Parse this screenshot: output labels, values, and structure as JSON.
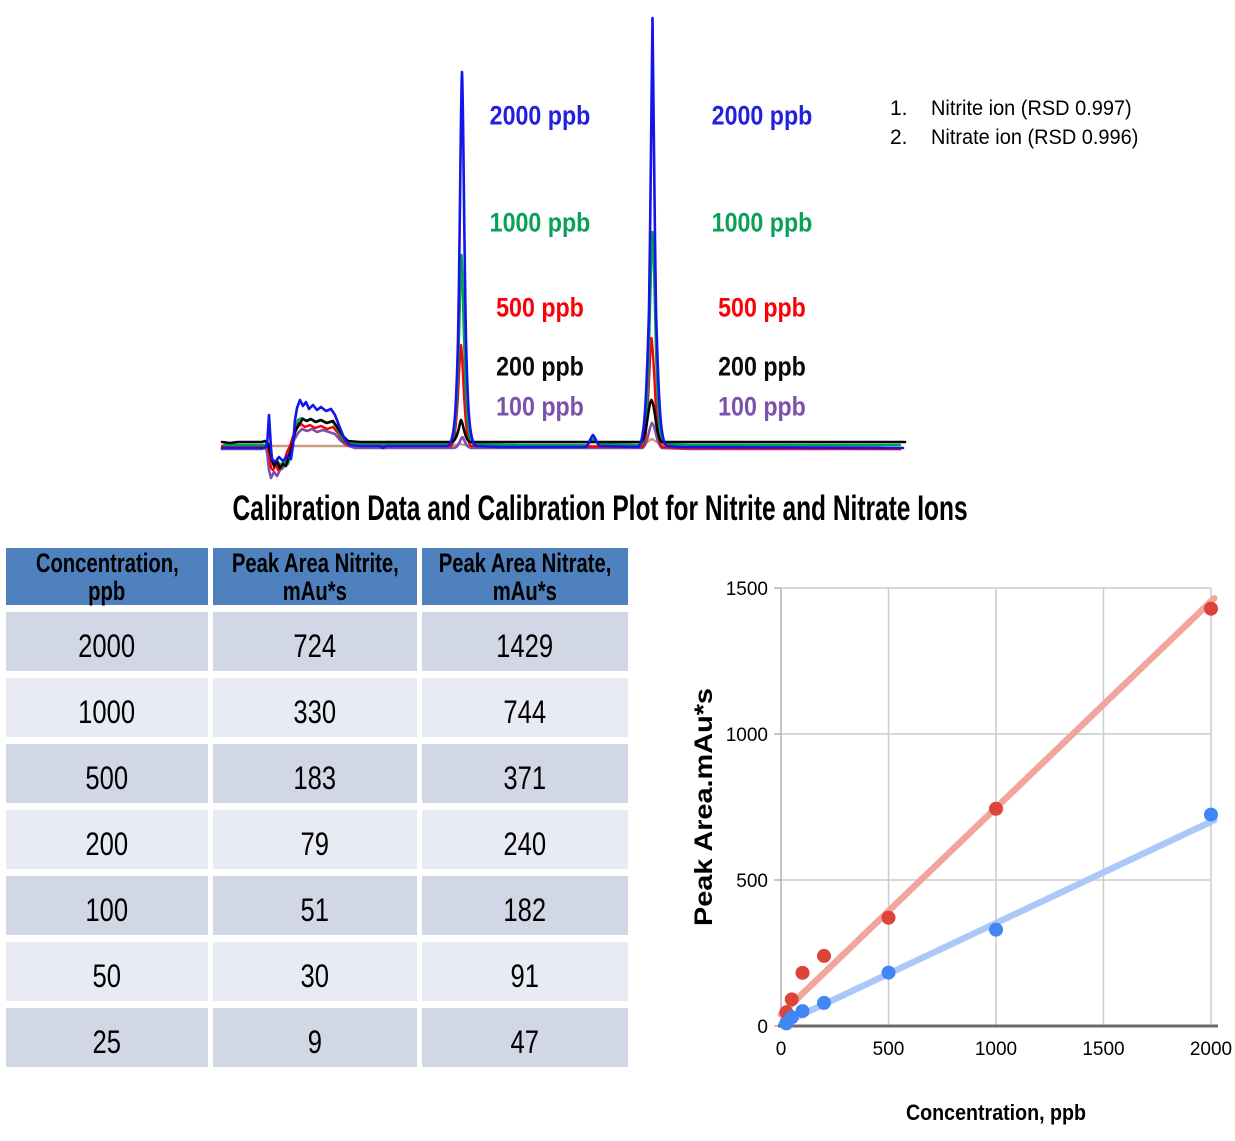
{
  "chromatogram": {
    "concentration_labels": [
      {
        "text": "2000 ppb",
        "color": "#2121DE"
      },
      {
        "text": "1000 ppb",
        "color": "#0AA157"
      },
      {
        "text": "500 ppb",
        "color": "#FB0007"
      },
      {
        "text": "200 ppb",
        "color": "#0A0A0A"
      },
      {
        "text": "100 ppb",
        "color": "#7B51A9"
      }
    ],
    "legend": {
      "items": [
        {
          "num": "1.",
          "label": "Nitrite ion (RSD 0.997)"
        },
        {
          "num": "2.",
          "label": "Nitrate ion (RSD 0.996)"
        }
      ]
    },
    "trace_colors": {
      "blue": "#1414EB",
      "green": "#00A14E",
      "red": "#FB0007",
      "black": "#050505",
      "purple": "#7B51A9",
      "tan": "#C99B7C"
    }
  },
  "section_title": "Calibration Data and Calibration Plot for Nitrite and Nitrate Ions",
  "table": {
    "headers": [
      {
        "line1": "Concentration,",
        "line2": "ppb"
      },
      {
        "line1": "Peak Area Nitrite,",
        "line2": "mAu*s"
      },
      {
        "line1": "Peak Area Nitrate,",
        "line2": "mAu*s"
      }
    ],
    "rows": [
      [
        "2000",
        "724",
        "1429"
      ],
      [
        "1000",
        "330",
        "744"
      ],
      [
        "500",
        "183",
        "371"
      ],
      [
        "200",
        "79",
        "240"
      ],
      [
        "100",
        "51",
        "182"
      ],
      [
        "50",
        "30",
        "91"
      ],
      [
        "25",
        "9",
        "47"
      ]
    ],
    "header_bg": "#4E81BD",
    "row_bg_dark": "#D2D7E6",
    "row_bg_light": "#E9EBF4"
  },
  "chart_data": [
    {
      "type": "line",
      "title": "Overlaid chromatograms of nitrite (peak 1) and nitrate (peak 2) standards",
      "series": [
        {
          "name": "2000 ppb",
          "color": "#1414EB"
        },
        {
          "name": "1000 ppb",
          "color": "#00A14E"
        },
        {
          "name": "500 ppb",
          "color": "#FB0007"
        },
        {
          "name": "200 ppb",
          "color": "#050505"
        },
        {
          "name": "100 ppb",
          "color": "#7B51A9"
        }
      ],
      "legend_entries": [
        "1. Nitrite ion (RSD 0.997)",
        "2. Nitrate ion (RSD 0.996)"
      ]
    },
    {
      "type": "scatter",
      "title": "",
      "xlabel": "Concentration, ppb",
      "ylabel": "Peak Area.mAu*s",
      "xlim": [
        0,
        2000
      ],
      "ylim": [
        0,
        1500
      ],
      "x_ticks": [
        0,
        500,
        1000,
        1500,
        2000
      ],
      "y_ticks": [
        0,
        500,
        1000,
        1500
      ],
      "grid": true,
      "legend_position": "none",
      "series": [
        {
          "name": "Nitrate",
          "dot_color": "#DB4437",
          "line_color": "#F2A59B",
          "x": [
            25,
            50,
            100,
            200,
            500,
            1000,
            2000
          ],
          "y": [
            47,
            91,
            182,
            240,
            371,
            744,
            1429
          ],
          "trend": {
            "x": [
              0,
              2015
            ],
            "y": [
              40,
              1465
            ]
          }
        },
        {
          "name": "Nitrite",
          "dot_color": "#4285F4",
          "line_color": "#ABC8F8",
          "x": [
            25,
            50,
            100,
            200,
            500,
            1000,
            2000
          ],
          "y": [
            9,
            30,
            51,
            79,
            183,
            330,
            724
          ],
          "trend": {
            "x": [
              0,
              2015
            ],
            "y": [
              5,
              705
            ]
          }
        }
      ]
    }
  ]
}
